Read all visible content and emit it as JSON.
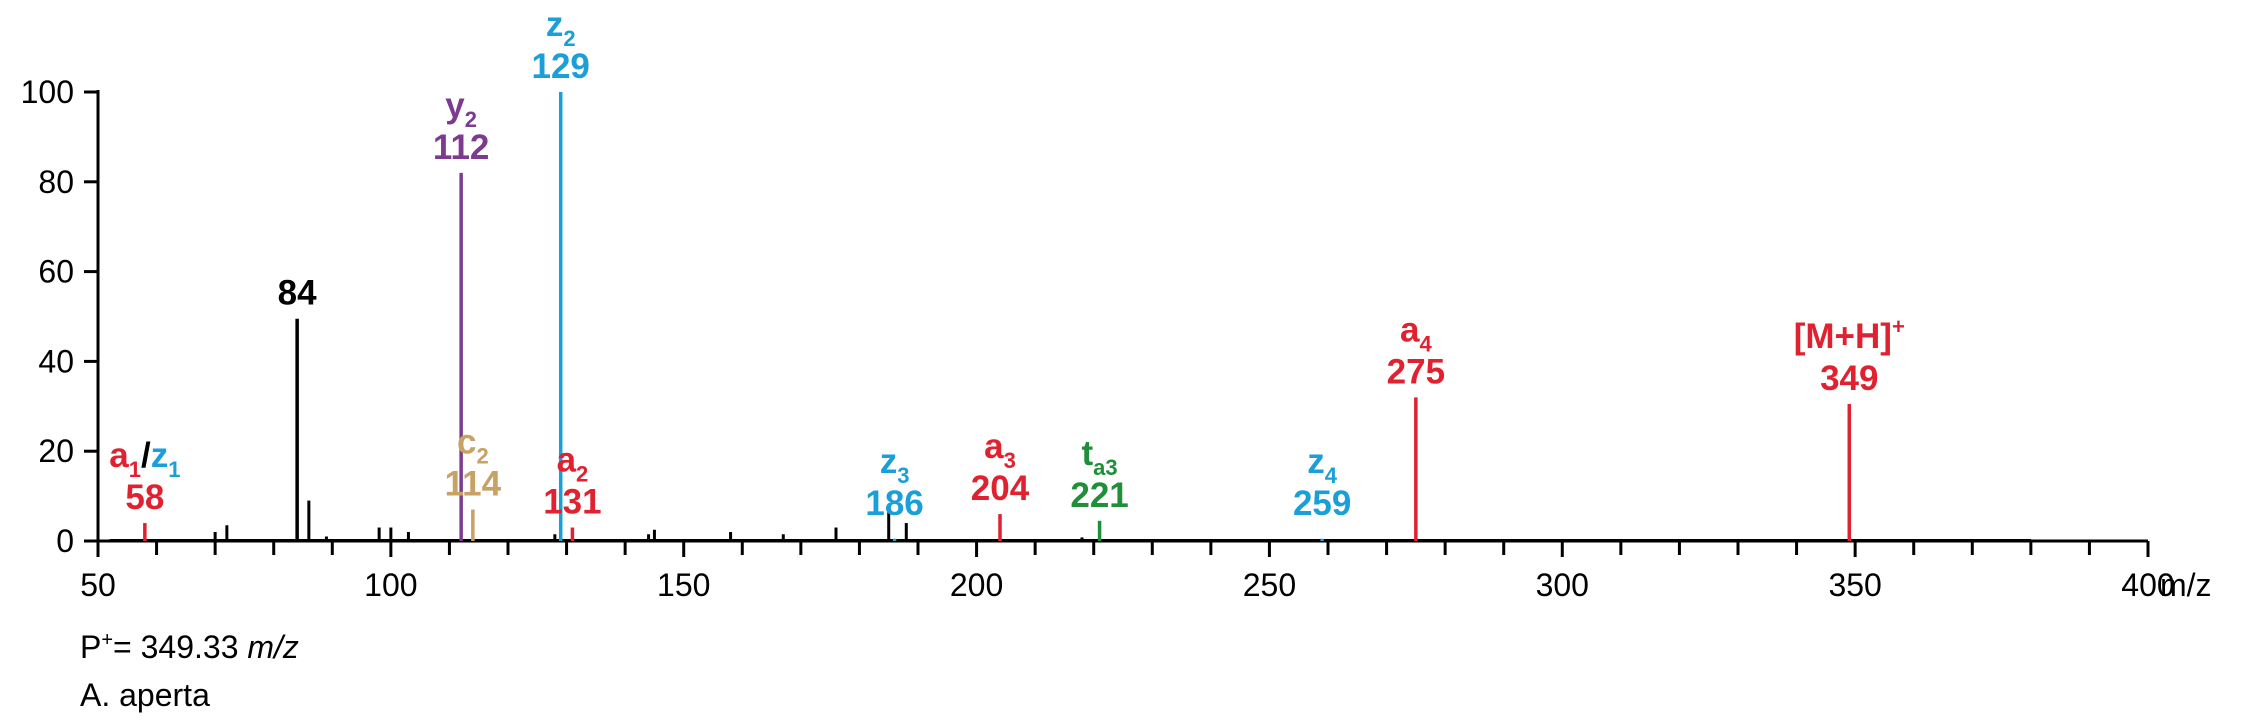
{
  "colors": {
    "axis": "#000000",
    "red": "#e0212f",
    "blue": "#1a9fd9",
    "purple": "#7d3b8f",
    "tan": "#c8a165",
    "green": "#1f8f3a",
    "black": "#000000"
  },
  "info": {
    "precursor_prefix": "P",
    "precursor_sup": "+",
    "precursor_value": "= 349.33 ",
    "precursor_unit": "m/z",
    "species": "A. aperta"
  },
  "chart_data": {
    "type": "bar",
    "xlabel": "m/z",
    "ylabel": "",
    "xlim": [
      50,
      400
    ],
    "ylim": [
      0,
      100
    ],
    "x_ticks": [
      "50",
      "100",
      "150",
      "200",
      "250",
      "300",
      "350",
      "400"
    ],
    "x_tick_values": [
      50,
      100,
      150,
      200,
      250,
      300,
      350,
      400
    ],
    "y_ticks": [
      "0",
      "20",
      "40",
      "60",
      "80",
      "100"
    ],
    "y_tick_values": [
      0,
      20,
      40,
      60,
      80,
      100
    ],
    "labeled_peaks": [
      {
        "mz": 58,
        "intensity": 4,
        "color": "red",
        "ion_text": "a",
        "ion_sub": "1",
        "ion_text2": "z",
        "ion_sub2": "1",
        "mz_text": "58"
      },
      {
        "mz": 84,
        "intensity": 49.5,
        "color": "black",
        "ion_text": "",
        "ion_sub": "",
        "mz_text": "84"
      },
      {
        "mz": 112,
        "intensity": 82,
        "color": "purple",
        "ion_text": "y",
        "ion_sub": "2",
        "mz_text": "112"
      },
      {
        "mz": 114,
        "intensity": 7,
        "color": "tan",
        "ion_text": "c",
        "ion_sub": "2",
        "mz_text": "114"
      },
      {
        "mz": 129,
        "intensity": 100,
        "color": "blue",
        "ion_text": "z",
        "ion_sub": "2",
        "mz_text": "129"
      },
      {
        "mz": 131,
        "intensity": 3,
        "color": "red",
        "ion_text": "a",
        "ion_sub": "2",
        "mz_text": "131"
      },
      {
        "mz": 186,
        "intensity": 0.5,
        "color": "blue",
        "ion_text": "z",
        "ion_sub": "3",
        "mz_text": "186"
      },
      {
        "mz": 204,
        "intensity": 6,
        "color": "red",
        "ion_text": "a",
        "ion_sub": "3",
        "mz_text": "204"
      },
      {
        "mz": 221,
        "intensity": 4.5,
        "color": "green",
        "ion_text": "t",
        "ion_sub": "a3",
        "mz_text": "221"
      },
      {
        "mz": 259,
        "intensity": 0.5,
        "color": "blue",
        "ion_text": "z",
        "ion_sub": "4",
        "mz_text": "259"
      },
      {
        "mz": 275,
        "intensity": 32,
        "color": "red",
        "ion_text": "a",
        "ion_sub": "4",
        "mz_text": "275"
      },
      {
        "mz": 349,
        "intensity": 30.5,
        "color": "red",
        "ion_text": "[M+H]",
        "ion_sup": "+",
        "mz_text": "349"
      }
    ],
    "unlabeled_peaks": [
      {
        "mz": 70,
        "intensity": 2
      },
      {
        "mz": 72,
        "intensity": 3.5
      },
      {
        "mz": 86,
        "intensity": 9
      },
      {
        "mz": 89,
        "intensity": 1
      },
      {
        "mz": 98,
        "intensity": 3
      },
      {
        "mz": 100,
        "intensity": 3
      },
      {
        "mz": 103,
        "intensity": 2
      },
      {
        "mz": 128,
        "intensity": 1.5
      },
      {
        "mz": 144,
        "intensity": 1.5
      },
      {
        "mz": 145,
        "intensity": 2.5
      },
      {
        "mz": 158,
        "intensity": 2
      },
      {
        "mz": 167,
        "intensity": 1.5
      },
      {
        "mz": 176,
        "intensity": 3
      },
      {
        "mz": 185,
        "intensity": 7.5
      },
      {
        "mz": 188,
        "intensity": 4
      },
      {
        "mz": 218,
        "intensity": 0.8
      }
    ]
  }
}
